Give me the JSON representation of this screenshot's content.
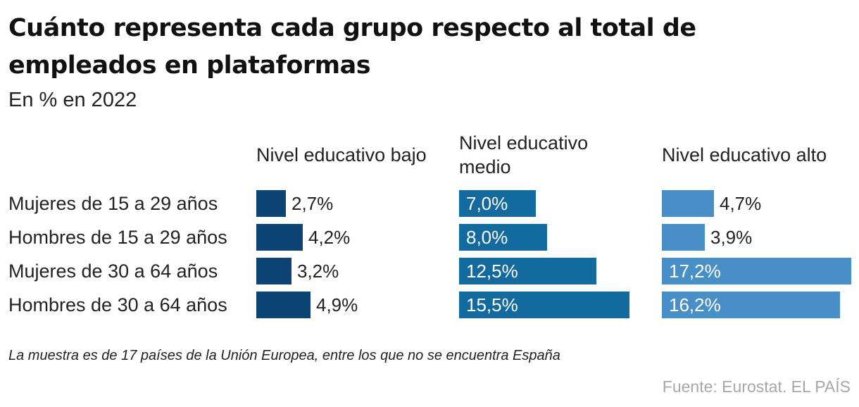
{
  "title": "Cuánto representa cada grupo respecto al total de empleados en plataformas",
  "subtitle": "En % en 2022",
  "note": "La muestra es de 17 países de la Unión Europea, entre los que no se encuentra España",
  "source": "Fuente: Eurostat. EL PAÍS",
  "chart_data": {
    "type": "bar",
    "orientation": "horizontal",
    "categories": [
      "Mujeres de 15 a 29 años",
      "Hombres de 15 a 29 años",
      "Mujeres de 30 a 64 años",
      "Hombres de 30 a 64 años"
    ],
    "series": [
      {
        "name": "Nivel educativo bajo",
        "color": "#0d4474",
        "values": [
          2.7,
          4.2,
          3.2,
          4.9
        ],
        "labels": [
          "2,7%",
          "4,2%",
          "3,2%",
          "4,9%"
        ]
      },
      {
        "name": "Nivel educativo medio",
        "color": "#126a9e",
        "values": [
          7.0,
          8.0,
          12.5,
          15.5
        ],
        "labels": [
          "7,0%",
          "8,0%",
          "12,5%",
          "15,5%"
        ]
      },
      {
        "name": "Nivel educativo alto",
        "color": "#478fc6",
        "values": [
          4.7,
          3.9,
          17.2,
          16.2
        ],
        "labels": [
          "4,7%",
          "3,9%",
          "17,2%",
          "16,2%"
        ]
      }
    ],
    "unit": "%",
    "xlim": [
      0,
      17.2
    ]
  }
}
